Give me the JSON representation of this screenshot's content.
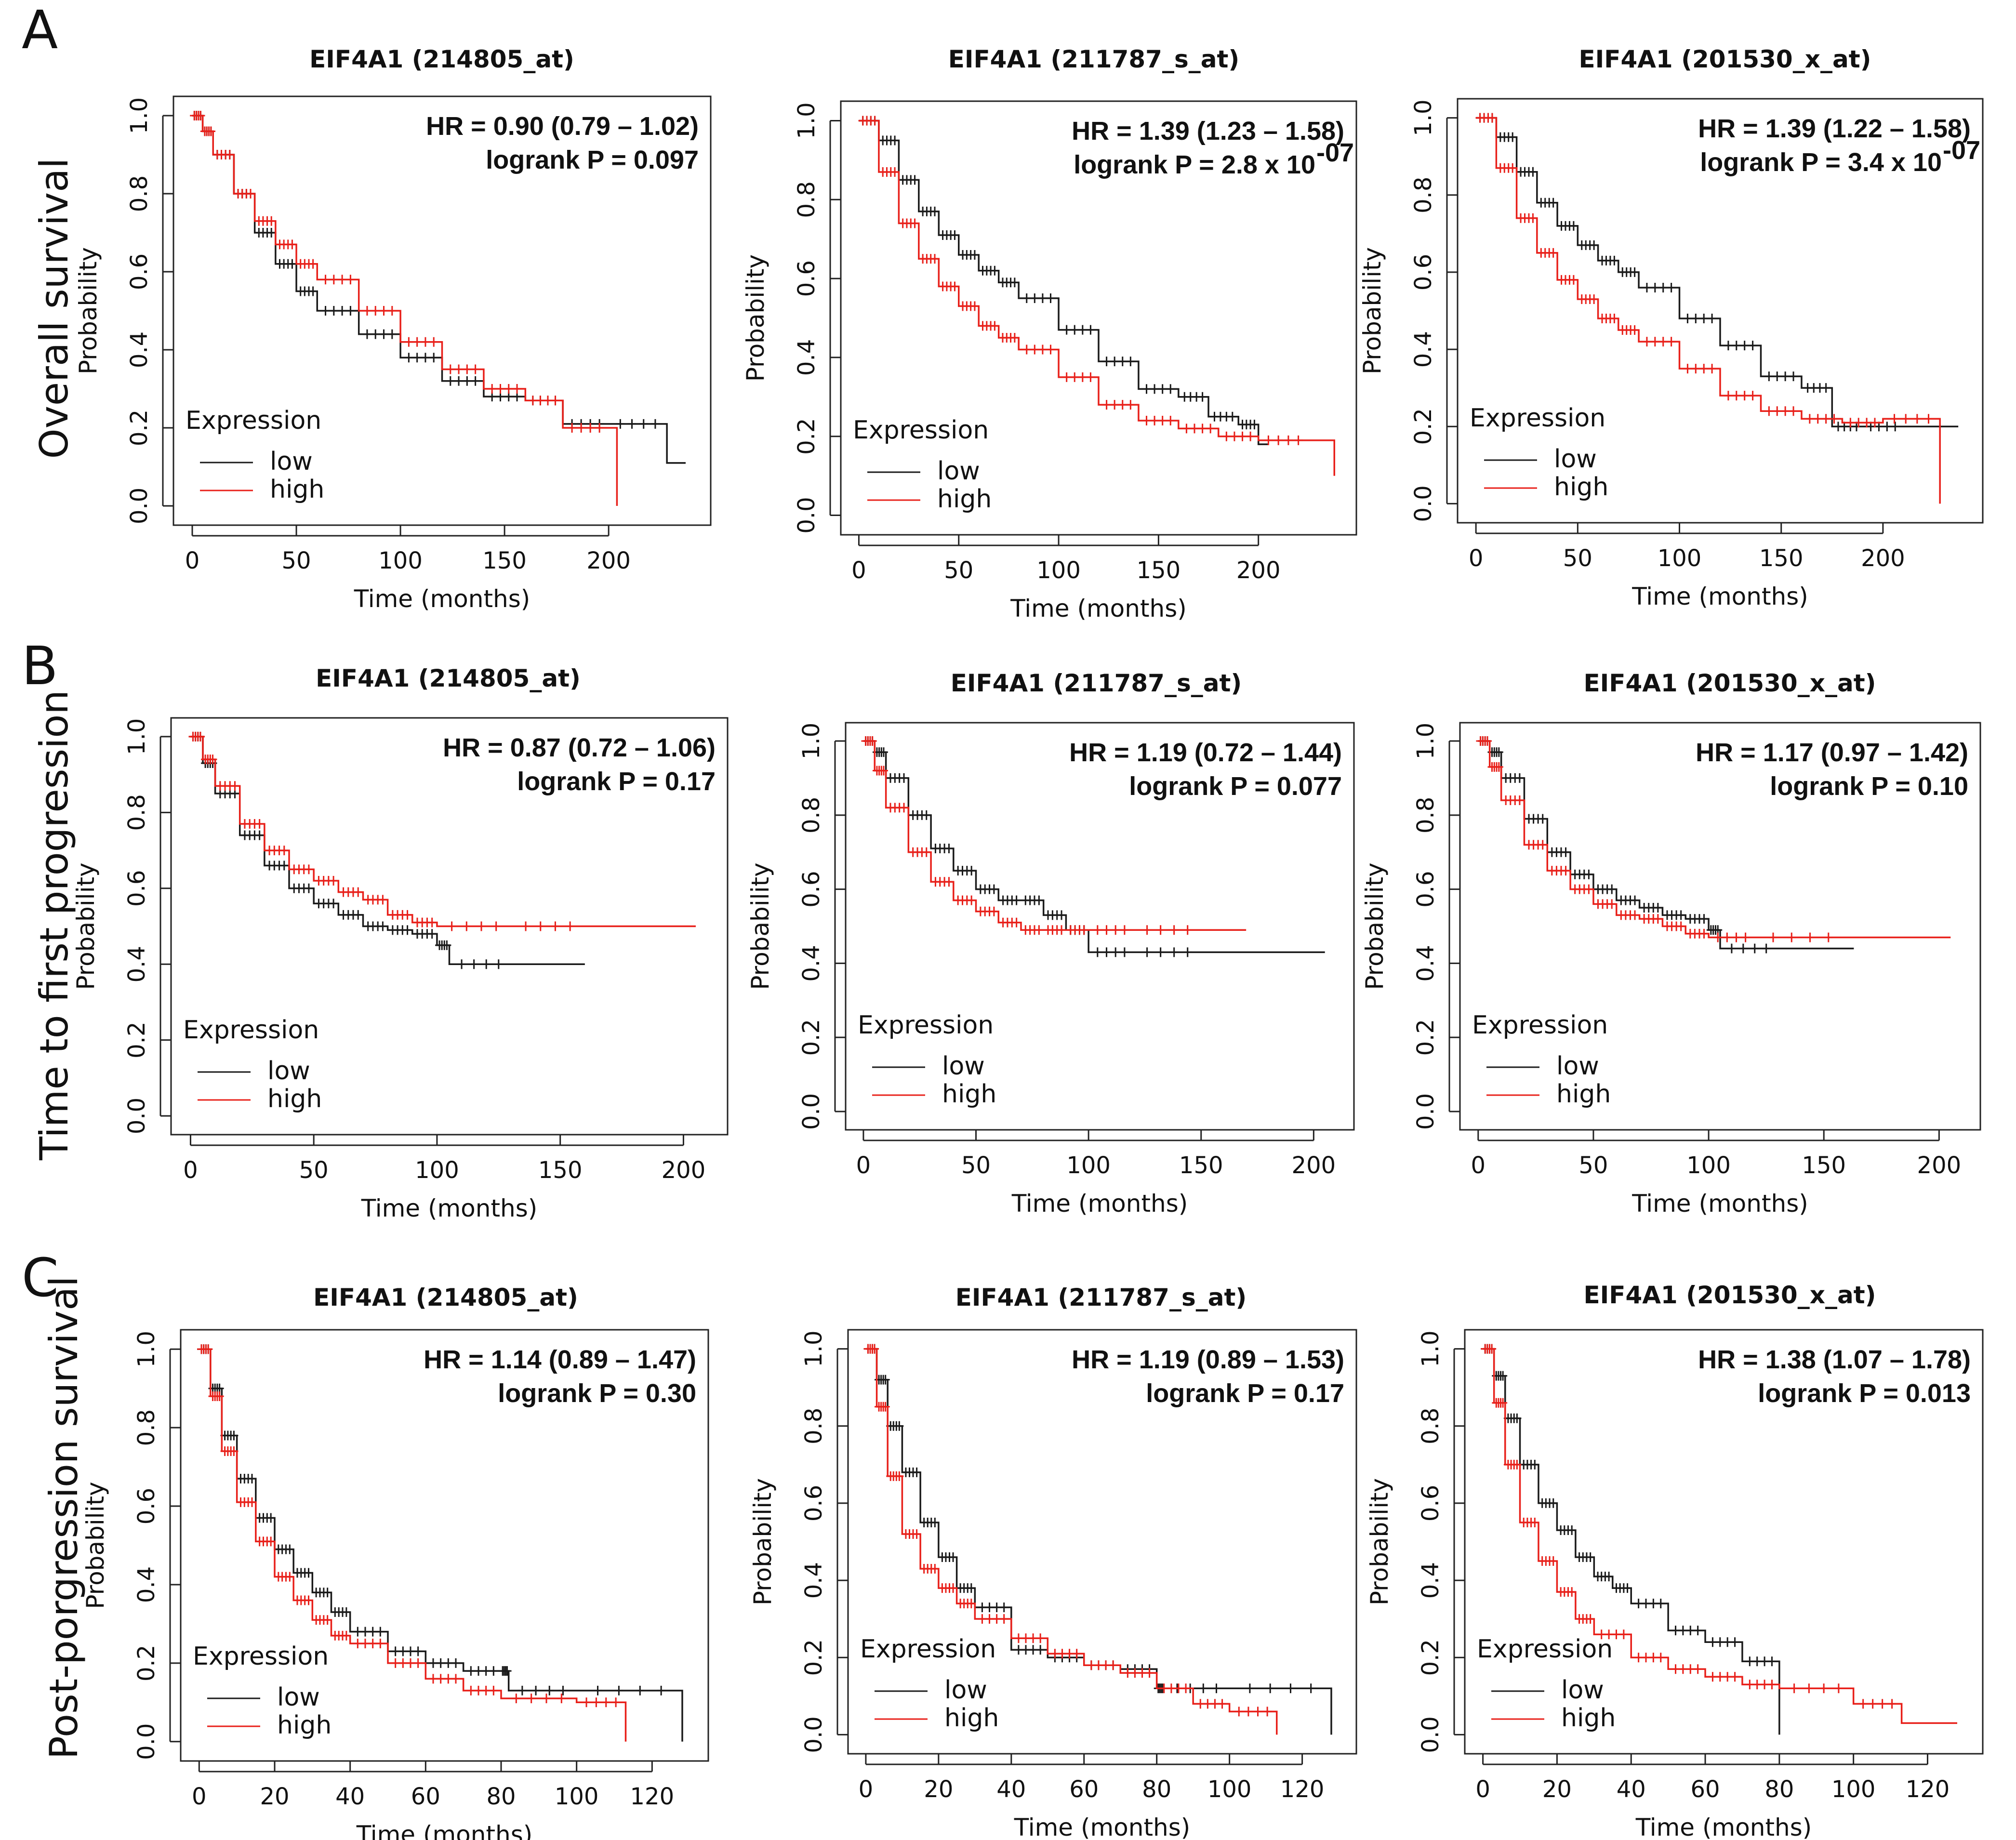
{
  "figure": {
    "colors": {
      "low": "#1a1a1a",
      "high": "#e8201a",
      "frame": "#222222"
    },
    "rows": [
      {
        "letter": "A",
        "label": "Overall survival"
      },
      {
        "letter": "B",
        "label": "Time to first progression"
      },
      {
        "letter": "C",
        "label": "Post-porgression survival"
      }
    ]
  },
  "chart_data": [
    {
      "type": "line",
      "panel": "A1",
      "title": "EIF4A1 (214805_at)",
      "xlabel": "Time (months)",
      "ylabel": "Probability",
      "xlim": [
        0,
        240
      ],
      "ylim": [
        0,
        1
      ],
      "xticks": [
        "0",
        "50",
        "100",
        "150",
        "200"
      ],
      "xtick_values": [
        0,
        50,
        100,
        150,
        200
      ],
      "yticks": [
        "0.0",
        "0.2",
        "0.4",
        "0.6",
        "0.8",
        "1.0"
      ],
      "hr": "HR = 0.90 (0.79 – 1.02)",
      "logrank": "logrank P = 0.097",
      "legend": {
        "title": "Expression",
        "low": "low",
        "high": "high"
      },
      "series": [
        {
          "name": "low",
          "x": [
            0,
            5,
            10,
            20,
            30,
            40,
            50,
            60,
            80,
            100,
            120,
            140,
            160,
            178,
            200,
            228,
            237
          ],
          "y": [
            1.0,
            0.96,
            0.9,
            0.8,
            0.7,
            0.62,
            0.55,
            0.5,
            0.44,
            0.38,
            0.32,
            0.28,
            0.27,
            0.21,
            0.21,
            0.11,
            0.11
          ]
        },
        {
          "name": "high",
          "x": [
            0,
            5,
            10,
            20,
            30,
            40,
            50,
            60,
            80,
            100,
            120,
            140,
            160,
            178,
            200,
            204
          ],
          "y": [
            1.0,
            0.96,
            0.9,
            0.8,
            0.73,
            0.67,
            0.62,
            0.58,
            0.5,
            0.42,
            0.35,
            0.3,
            0.27,
            0.2,
            0.2,
            0.0
          ]
        }
      ]
    },
    {
      "type": "line",
      "panel": "A2",
      "title": "EIF4A1 (211787_s_at)",
      "xlabel": "Time (months)",
      "ylabel": "Probability",
      "xlim": [
        0,
        240
      ],
      "ylim": [
        0,
        1
      ],
      "xticks": [
        "0",
        "50",
        "100",
        "150",
        "200"
      ],
      "xtick_values": [
        0,
        50,
        100,
        150,
        200
      ],
      "yticks": [
        "0.0",
        "0.2",
        "0.4",
        "0.6",
        "0.8",
        "1.0"
      ],
      "hr": "HR = 1.39 (1.23 – 1.58)",
      "logrank": "logrank P = 2.8 x 10",
      "logrank_exp": "-07",
      "legend": {
        "title": "Expression",
        "low": "low",
        "high": "high"
      },
      "series": [
        {
          "name": "low",
          "x": [
            0,
            10,
            20,
            30,
            40,
            50,
            60,
            70,
            80,
            100,
            120,
            140,
            160,
            175,
            190,
            200,
            205
          ],
          "y": [
            1.0,
            0.95,
            0.85,
            0.77,
            0.71,
            0.66,
            0.62,
            0.59,
            0.55,
            0.47,
            0.39,
            0.32,
            0.3,
            0.25,
            0.23,
            0.18,
            0.18
          ]
        },
        {
          "name": "high",
          "x": [
            0,
            10,
            20,
            30,
            40,
            50,
            60,
            70,
            80,
            100,
            120,
            140,
            160,
            180,
            200,
            225,
            238
          ],
          "y": [
            1.0,
            0.87,
            0.74,
            0.65,
            0.58,
            0.53,
            0.48,
            0.45,
            0.42,
            0.35,
            0.28,
            0.24,
            0.22,
            0.2,
            0.19,
            0.19,
            0.1
          ]
        }
      ]
    },
    {
      "type": "line",
      "panel": "A3",
      "title": "EIF4A1 (201530_x_at)",
      "xlabel": "Time (months)",
      "ylabel": "Probability",
      "xlim": [
        0,
        240
      ],
      "ylim": [
        0,
        1
      ],
      "xticks": [
        "0",
        "50",
        "100",
        "150",
        "200"
      ],
      "xtick_values": [
        0,
        50,
        100,
        150,
        200
      ],
      "yticks": [
        "0.0",
        "0.2",
        "0.4",
        "0.6",
        "0.8",
        "1.0"
      ],
      "hr": "HR = 1.39 (1.22 – 1.58)",
      "logrank": "logrank P = 3.4 x 10",
      "logrank_exp": "-07",
      "legend": {
        "title": "Expression",
        "low": "low",
        "high": "high"
      },
      "series": [
        {
          "name": "low",
          "x": [
            0,
            10,
            20,
            30,
            40,
            50,
            60,
            70,
            80,
            100,
            120,
            140,
            160,
            175,
            190,
            210,
            237
          ],
          "y": [
            1.0,
            0.95,
            0.86,
            0.78,
            0.72,
            0.67,
            0.63,
            0.6,
            0.56,
            0.48,
            0.41,
            0.33,
            0.3,
            0.2,
            0.2,
            0.2,
            0.2
          ]
        },
        {
          "name": "high",
          "x": [
            0,
            10,
            20,
            30,
            40,
            50,
            60,
            70,
            80,
            100,
            120,
            140,
            160,
            180,
            200,
            228,
            228
          ],
          "y": [
            1.0,
            0.87,
            0.74,
            0.65,
            0.58,
            0.53,
            0.48,
            0.45,
            0.42,
            0.35,
            0.28,
            0.24,
            0.22,
            0.21,
            0.22,
            0.15,
            0.0
          ]
        }
      ]
    },
    {
      "type": "line",
      "panel": "B1",
      "title": "EIF4A1 (214805_at)",
      "xlabel": "Time (months)",
      "ylabel": "Probability",
      "xlim": [
        0,
        210
      ],
      "ylim": [
        0,
        1
      ],
      "xticks": [
        "0",
        "50",
        "100",
        "150",
        "200"
      ],
      "xtick_values": [
        0,
        50,
        100,
        150,
        200
      ],
      "yticks": [
        "0.0",
        "0.2",
        "0.4",
        "0.6",
        "0.8",
        "1.0"
      ],
      "hr": "HR = 0.87 (0.72 – 1.06)",
      "logrank": "logrank P = 0.17",
      "legend": {
        "title": "Expression",
        "low": "low",
        "high": "high"
      },
      "series": [
        {
          "name": "low",
          "x": [
            0,
            5,
            10,
            20,
            30,
            40,
            50,
            60,
            70,
            80,
            90,
            100,
            105,
            130,
            160
          ],
          "y": [
            1.0,
            0.93,
            0.85,
            0.74,
            0.66,
            0.6,
            0.56,
            0.53,
            0.5,
            0.49,
            0.48,
            0.45,
            0.4,
            0.4,
            0.4
          ]
        },
        {
          "name": "high",
          "x": [
            0,
            5,
            10,
            20,
            30,
            40,
            50,
            60,
            70,
            80,
            90,
            100,
            130,
            160,
            205
          ],
          "y": [
            1.0,
            0.94,
            0.87,
            0.77,
            0.7,
            0.65,
            0.62,
            0.59,
            0.57,
            0.53,
            0.51,
            0.5,
            0.5,
            0.5,
            0.5
          ]
        }
      ]
    },
    {
      "type": "line",
      "panel": "B2",
      "title": "EIF4A1 (211787_s_at)",
      "xlabel": "Time (months)",
      "ylabel": "Probability",
      "xlim": [
        0,
        210
      ],
      "ylim": [
        0,
        1
      ],
      "xticks": [
        "0",
        "50",
        "100",
        "150",
        "200"
      ],
      "xtick_values": [
        0,
        50,
        100,
        150,
        200
      ],
      "yticks": [
        "0.0",
        "0.2",
        "0.4",
        "0.6",
        "0.8",
        "1.0"
      ],
      "hr": "HR = 1.19 (0.72 – 1.44)",
      "logrank": "logrank P = 0.077",
      "legend": {
        "title": "Expression",
        "low": "low",
        "high": "high"
      },
      "series": [
        {
          "name": "low",
          "x": [
            0,
            5,
            10,
            20,
            30,
            40,
            50,
            60,
            70,
            80,
            90,
            100,
            120,
            150,
            205
          ],
          "y": [
            1.0,
            0.97,
            0.9,
            0.8,
            0.71,
            0.65,
            0.6,
            0.57,
            0.57,
            0.53,
            0.49,
            0.43,
            0.43,
            0.43,
            0.43
          ]
        },
        {
          "name": "high",
          "x": [
            0,
            5,
            10,
            20,
            30,
            40,
            50,
            60,
            70,
            80,
            90,
            100,
            120,
            150,
            170
          ],
          "y": [
            1.0,
            0.92,
            0.82,
            0.7,
            0.62,
            0.57,
            0.54,
            0.51,
            0.49,
            0.49,
            0.49,
            0.49,
            0.49,
            0.49,
            0.49
          ]
        }
      ]
    },
    {
      "type": "line",
      "panel": "B3",
      "title": "EIF4A1 (201530_x_at)",
      "xlabel": "Time (months)",
      "ylabel": "Probability",
      "xlim": [
        0,
        210
      ],
      "ylim": [
        0,
        1
      ],
      "xticks": [
        "0",
        "50",
        "100",
        "150",
        "200"
      ],
      "xtick_values": [
        0,
        50,
        100,
        150,
        200
      ],
      "yticks": [
        "0.0",
        "0.2",
        "0.4",
        "0.6",
        "0.8",
        "1.0"
      ],
      "hr": "HR = 1.17 (0.97 – 1.42)",
      "logrank": "logrank P = 0.10",
      "legend": {
        "title": "Expression",
        "low": "low",
        "high": "high"
      },
      "series": [
        {
          "name": "low",
          "x": [
            0,
            5,
            10,
            20,
            30,
            40,
            50,
            60,
            70,
            80,
            90,
            100,
            105,
            130,
            163
          ],
          "y": [
            1.0,
            0.97,
            0.9,
            0.79,
            0.7,
            0.64,
            0.6,
            0.57,
            0.55,
            0.53,
            0.52,
            0.49,
            0.44,
            0.44,
            0.44
          ]
        },
        {
          "name": "high",
          "x": [
            0,
            5,
            10,
            20,
            30,
            40,
            50,
            60,
            70,
            80,
            90,
            100,
            120,
            160,
            205
          ],
          "y": [
            1.0,
            0.93,
            0.84,
            0.72,
            0.65,
            0.6,
            0.56,
            0.53,
            0.52,
            0.5,
            0.48,
            0.47,
            0.47,
            0.47,
            0.47
          ]
        }
      ]
    },
    {
      "type": "line",
      "panel": "C1",
      "title": "EIF4A1 (214805_at)",
      "xlabel": "Time (months)",
      "ylabel": "Probability",
      "xlim": [
        0,
        130
      ],
      "ylim": [
        0,
        1
      ],
      "xticks": [
        "0",
        "20",
        "40",
        "60",
        "80",
        "100",
        "120"
      ],
      "xtick_values": [
        0,
        20,
        40,
        60,
        80,
        100,
        120
      ],
      "yticks": [
        "0.0",
        "0.2",
        "0.4",
        "0.6",
        "0.8",
        "1.0"
      ],
      "hr": "HR = 1.14 (0.89 – 1.47)",
      "logrank": "logrank P = 0.30",
      "legend": {
        "title": "Expression",
        "low": "low",
        "high": "high"
      },
      "series": [
        {
          "name": "low",
          "x": [
            0,
            3,
            6,
            10,
            15,
            20,
            25,
            30,
            35,
            40,
            50,
            60,
            70,
            80,
            82,
            100,
            128,
            128
          ],
          "y": [
            1.0,
            0.9,
            0.78,
            0.67,
            0.57,
            0.49,
            0.43,
            0.38,
            0.33,
            0.28,
            0.23,
            0.2,
            0.18,
            0.18,
            0.13,
            0.13,
            0.13,
            0.0
          ]
        },
        {
          "name": "high",
          "x": [
            0,
            3,
            6,
            10,
            15,
            20,
            25,
            30,
            35,
            40,
            50,
            60,
            70,
            80,
            100,
            113,
            113
          ],
          "y": [
            1.0,
            0.88,
            0.74,
            0.61,
            0.51,
            0.42,
            0.36,
            0.31,
            0.27,
            0.25,
            0.2,
            0.16,
            0.13,
            0.11,
            0.1,
            0.1,
            0.0
          ]
        }
      ]
    },
    {
      "type": "line",
      "panel": "C2",
      "title": "EIF4A1 (211787_s_at)",
      "xlabel": "Time (months)",
      "ylabel": "Probability",
      "xlim": [
        0,
        130
      ],
      "ylim": [
        0,
        1
      ],
      "xticks": [
        "0",
        "20",
        "40",
        "60",
        "80",
        "100",
        "120"
      ],
      "xtick_values": [
        0,
        20,
        40,
        60,
        80,
        100,
        120
      ],
      "yticks": [
        "0.0",
        "0.2",
        "0.4",
        "0.6",
        "0.8",
        "1.0"
      ],
      "hr": "HR = 1.19 (0.89 – 1.53)",
      "logrank": "logrank P = 0.17",
      "legend": {
        "title": "Expression",
        "low": "low",
        "high": "high"
      },
      "series": [
        {
          "name": "low",
          "x": [
            0,
            3,
            6,
            10,
            15,
            20,
            25,
            30,
            40,
            50,
            60,
            70,
            80,
            82,
            100,
            128,
            128
          ],
          "y": [
            1.0,
            0.92,
            0.8,
            0.68,
            0.55,
            0.46,
            0.38,
            0.33,
            0.22,
            0.2,
            0.18,
            0.17,
            0.12,
            0.12,
            0.12,
            0.12,
            0.0
          ]
        },
        {
          "name": "high",
          "x": [
            0,
            3,
            6,
            10,
            15,
            20,
            25,
            30,
            40,
            50,
            60,
            70,
            80,
            90,
            100,
            113,
            113
          ],
          "y": [
            1.0,
            0.85,
            0.67,
            0.52,
            0.43,
            0.38,
            0.34,
            0.3,
            0.25,
            0.21,
            0.18,
            0.16,
            0.12,
            0.08,
            0.06,
            0.06,
            0.0
          ]
        }
      ]
    },
    {
      "type": "line",
      "panel": "C3",
      "title": "EIF4A1 (201530_x_at)",
      "xlabel": "Time (months)",
      "ylabel": "Probability",
      "xlim": [
        0,
        130
      ],
      "ylim": [
        0,
        1
      ],
      "xticks": [
        "0",
        "20",
        "40",
        "60",
        "80",
        "100",
        "120"
      ],
      "xtick_values": [
        0,
        20,
        40,
        60,
        80,
        100,
        120
      ],
      "yticks": [
        "0.0",
        "0.2",
        "0.4",
        "0.6",
        "0.8",
        "1.0"
      ],
      "hr": "HR = 1.38 (1.07 – 1.78)",
      "logrank": "logrank P = 0.013",
      "legend": {
        "title": "Expression",
        "low": "low",
        "high": "high"
      },
      "series": [
        {
          "name": "low",
          "x": [
            0,
            3,
            6,
            10,
            15,
            20,
            25,
            30,
            35,
            40,
            50,
            60,
            70,
            80,
            80
          ],
          "y": [
            1.0,
            0.93,
            0.82,
            0.7,
            0.6,
            0.53,
            0.46,
            0.41,
            0.38,
            0.34,
            0.27,
            0.24,
            0.19,
            0.17,
            0.0
          ]
        },
        {
          "name": "high",
          "x": [
            0,
            3,
            6,
            10,
            15,
            20,
            25,
            30,
            40,
            50,
            60,
            70,
            80,
            100,
            113,
            128
          ],
          "y": [
            1.0,
            0.86,
            0.7,
            0.55,
            0.45,
            0.37,
            0.3,
            0.26,
            0.2,
            0.17,
            0.15,
            0.13,
            0.12,
            0.08,
            0.03,
            0.03
          ]
        }
      ]
    }
  ]
}
